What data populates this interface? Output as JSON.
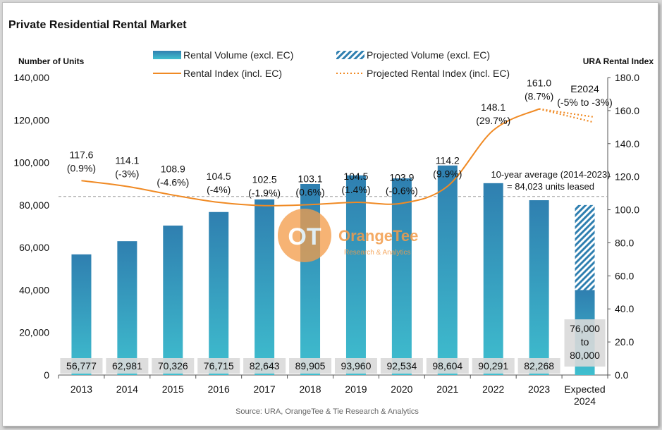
{
  "title": "Private Residential Rental Market",
  "source": "Source: URA, OrangeTee & Tie Research & Analytics",
  "watermark": {
    "name": "OrangeTee",
    "tagline": "Research & Analytics",
    "color": "#f39c4a"
  },
  "colors": {
    "bar_top": "#2f7fb0",
    "bar_bottom": "#3fbfcf",
    "line": "#f08a24",
    "reference": "#9e9e9e"
  },
  "chart_data": {
    "type": "bar",
    "categories": [
      "2013",
      "2014",
      "2015",
      "2016",
      "2017",
      "2018",
      "2019",
      "2020",
      "2021",
      "2022",
      "2023",
      "Expected 2024"
    ],
    "y_left": {
      "label": "Number of Units",
      "range": [
        0,
        140000
      ],
      "ticks": [
        "0",
        "20,000",
        "40,000",
        "60,000",
        "80,000",
        "100,000",
        "120,000",
        "140,000"
      ]
    },
    "y_right": {
      "label": "URA Rental Index",
      "range": [
        0,
        180
      ],
      "ticks": [
        "0.0",
        "20.0",
        "40.0",
        "60.0",
        "80.0",
        "100.0",
        "120.0",
        "140.0",
        "160.0",
        "180.0"
      ]
    },
    "legend": [
      {
        "label": "Rental Volume (excl. EC)",
        "kind": "bar"
      },
      {
        "label": "Projected Volume (excl. EC)",
        "kind": "hatched"
      },
      {
        "label": "Rental Index (incl. EC)",
        "kind": "line"
      },
      {
        "label": "Projected Rental Index (incl. EC)",
        "kind": "dotted"
      }
    ],
    "legend_position": "top",
    "series": [
      {
        "name": "Rental Volume (excl. EC)",
        "axis": "left",
        "values": [
          56777,
          62981,
          70326,
          76715,
          82643,
          89905,
          93960,
          92534,
          98604,
          90291,
          82268,
          40000
        ],
        "labels": [
          "56,777",
          "62,981",
          "70,326",
          "76,715",
          "82,643",
          "89,905",
          "93,960",
          "92,534",
          "98,604",
          "90,291",
          "82,268",
          "76,000 to 80,000"
        ]
      },
      {
        "name": "Projected Volume (excl. EC)",
        "axis": "left",
        "range": [
          40000,
          80000
        ],
        "category": "Expected 2024"
      },
      {
        "name": "Rental Index (incl. EC)",
        "axis": "right",
        "values": [
          117.6,
          114.1,
          108.9,
          104.5,
          102.5,
          103.1,
          104.5,
          103.9,
          114.2,
          148.1,
          161.0,
          null
        ],
        "label_values": [
          "117.6",
          "114.1",
          "108.9",
          "104.5",
          "102.5",
          "103.1",
          "104.5",
          "103.9",
          "114.2",
          "148.1",
          "161.0",
          "E2024"
        ],
        "label_changes": [
          "(0.9%)",
          "(-3%)",
          "(-4.6%)",
          "(-4%)",
          "(-1.9%)",
          "(0.6%)",
          "(1.4%)",
          "(-0.6%)",
          "(9.9%)",
          "(29.7%)",
          "(8.7%)",
          "(-5% to -3%)"
        ]
      },
      {
        "name": "Projected Rental Index (incl. EC)",
        "axis": "right",
        "from": 161.0,
        "to_range": [
          153.0,
          156.2
        ]
      }
    ],
    "reference_line": {
      "value": 84023,
      "axis": "left",
      "label_line1": "10-year average (2014-2023)",
      "label_line2": "= 84,023 units leased"
    }
  }
}
